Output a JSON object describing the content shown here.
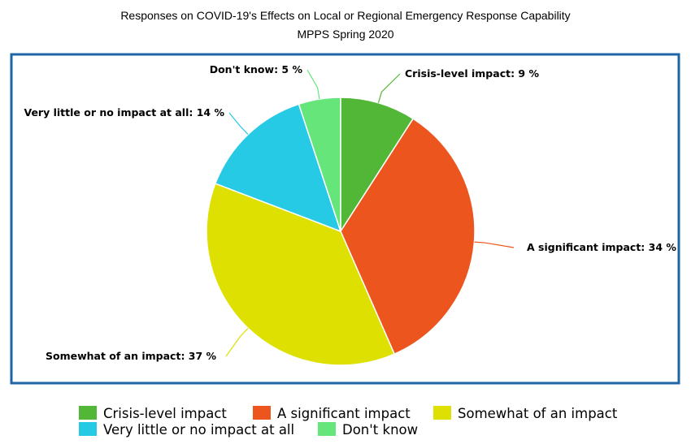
{
  "chart_data": {
    "type": "pie",
    "title": "Responses on COVID-19's Effects on Local or Regional Emergency Response Capability",
    "subtitle": "MPPS Spring 2020",
    "slices": [
      {
        "label": "Crisis-level impact",
        "value": 9,
        "display": "Crisis-level impact: 9 %",
        "color": "#52b736"
      },
      {
        "label": "A significant impact",
        "value": 34,
        "display": "A significant impact: 34 %",
        "color": "#ec561e"
      },
      {
        "label": "Somewhat of an impact",
        "value": 37,
        "display": "Somewhat of an impact: 37 %",
        "color": "#dde000"
      },
      {
        "label": "Very little or no impact at all",
        "value": 14,
        "display": "Very little or no impact at all: 14 %",
        "color": "#26cae4"
      },
      {
        "label": "Don't know",
        "value": 5,
        "display": "Don't know: 5 %",
        "color": "#66e57a"
      }
    ],
    "legend_position": "bottom",
    "frame_color": "#1f65a5"
  }
}
